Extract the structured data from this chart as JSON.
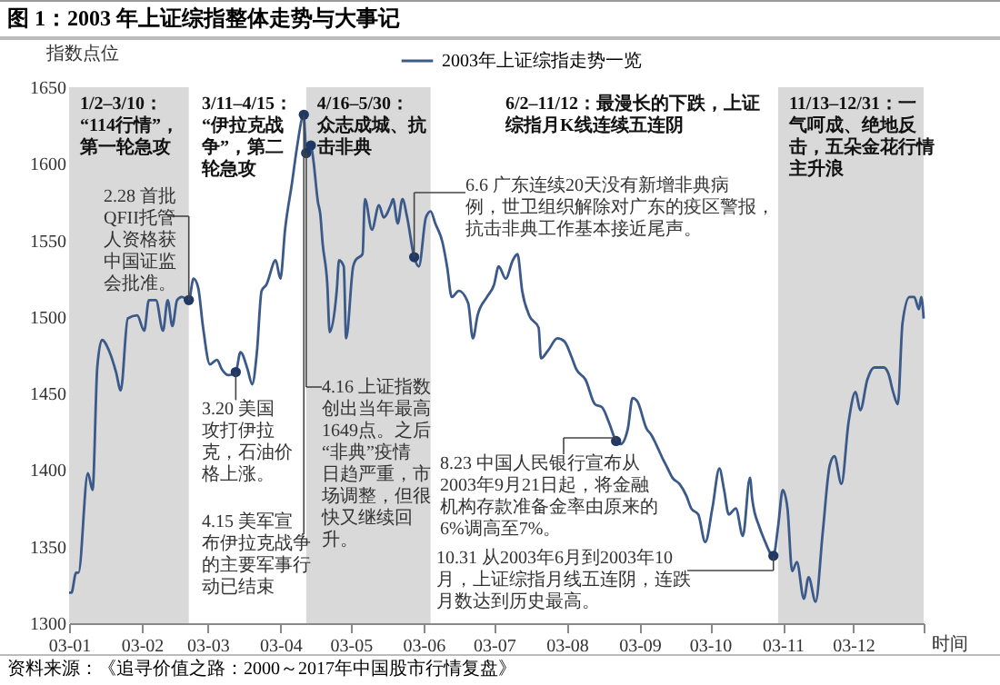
{
  "chart_data": {
    "type": "line",
    "title": "图 1：2003 年上证综指整体走势与大事记",
    "xlabel": "时间",
    "ylabel": "指数点位",
    "legend": "top",
    "xlim": [
      "2003-01-01",
      "2003-12-31"
    ],
    "ylim": [
      1300,
      1650
    ],
    "xticks": [
      {
        "value": "2003-01-01",
        "label": "03-01"
      },
      {
        "value": "2003-02-01",
        "label": "03-02"
      },
      {
        "value": "2003-03-01",
        "label": "03-03"
      },
      {
        "value": "2003-04-01",
        "label": "03-04"
      },
      {
        "value": "2003-05-01",
        "label": "03-05"
      },
      {
        "value": "2003-06-01",
        "label": "03-06"
      },
      {
        "value": "2003-07-01",
        "label": "03-07"
      },
      {
        "value": "2003-08-01",
        "label": "03-08"
      },
      {
        "value": "2003-09-01",
        "label": "03-09"
      },
      {
        "value": "2003-10-01",
        "label": "03-10"
      },
      {
        "value": "2003-11-01",
        "label": "03-11"
      },
      {
        "value": "2003-12-01",
        "label": "03-12"
      },
      {
        "value": "2003-12-31",
        "label": null
      }
    ],
    "yticks": [
      1300,
      1350,
      1400,
      1450,
      1500,
      1550,
      1600,
      1650
    ],
    "series": [
      {
        "name": "2003年上证综指走势一览",
        "color": "#3b5a8a",
        "x": [
          "2003-01-01",
          "2003-01-02",
          "2003-01-04",
          "2003-01-05",
          "2003-01-09",
          "2003-01-11",
          "2003-01-13",
          "2003-01-15",
          "2003-01-18",
          "2003-01-21",
          "2003-01-23",
          "2003-01-26",
          "2003-01-30",
          "2003-02-02",
          "2003-02-04",
          "2003-02-07",
          "2003-02-10",
          "2003-02-12",
          "2003-02-14",
          "2003-02-16",
          "2003-02-18",
          "2003-02-21",
          "2003-02-23",
          "2003-02-25",
          "2003-02-27",
          "2003-03-02",
          "2003-03-05",
          "2003-03-07",
          "2003-03-10",
          "2003-03-13",
          "2003-03-15",
          "2003-03-18",
          "2003-03-20",
          "2003-03-22",
          "2003-03-24",
          "2003-03-26",
          "2003-03-30",
          "2003-04-01",
          "2003-04-03",
          "2003-04-06",
          "2003-04-08",
          "2003-04-11",
          "2003-04-12",
          "2003-04-14",
          "2003-04-15",
          "2003-04-17",
          "2003-04-18",
          "2003-04-19",
          "2003-04-21",
          "2003-04-22",
          "2003-04-25",
          "2003-04-26",
          "2003-04-28",
          "2003-04-29",
          "2003-05-02",
          "2003-05-03",
          "2003-05-06",
          "2003-05-07",
          "2003-05-10",
          "2003-05-13",
          "2003-05-15",
          "2003-05-18",
          "2003-05-19",
          "2003-05-21",
          "2003-05-23",
          "2003-05-25",
          "2003-05-28",
          "2003-05-30",
          "2003-06-02",
          "2003-06-04",
          "2003-06-06",
          "2003-06-09",
          "2003-06-11",
          "2003-06-13",
          "2003-06-16",
          "2003-06-20",
          "2003-06-22",
          "2003-06-24",
          "2003-06-28",
          "2003-07-01",
          "2003-07-03",
          "2003-07-06",
          "2003-07-09",
          "2003-07-11",
          "2003-07-13",
          "2003-07-16",
          "2003-07-20",
          "2003-07-21",
          "2003-07-24",
          "2003-07-28",
          "2003-07-31",
          "2003-08-03",
          "2003-08-05",
          "2003-08-09",
          "2003-08-13",
          "2003-08-16",
          "2003-08-19",
          "2003-08-22",
          "2003-08-24",
          "2003-08-27",
          "2003-08-29",
          "2003-08-31",
          "2003-09-04",
          "2003-09-06",
          "2003-09-08",
          "2003-09-11",
          "2003-09-13",
          "2003-09-15",
          "2003-09-18",
          "2003-09-21",
          "2003-09-23",
          "2003-09-26",
          "2003-09-29",
          "2003-10-02",
          "2003-10-05",
          "2003-10-07",
          "2003-10-09",
          "2003-10-12",
          "2003-10-15",
          "2003-10-18",
          "2003-10-19",
          "2003-10-22",
          "2003-10-24",
          "2003-10-28",
          "2003-10-30",
          "2003-11-01",
          "2003-11-03",
          "2003-11-05",
          "2003-11-07",
          "2003-11-10",
          "2003-11-12",
          "2003-11-15",
          "2003-11-18",
          "2003-11-21",
          "2003-11-23",
          "2003-11-26",
          "2003-11-29",
          "2003-12-02",
          "2003-12-04",
          "2003-12-07",
          "2003-12-10",
          "2003-12-14",
          "2003-12-16",
          "2003-12-18",
          "2003-12-20",
          "2003-12-22",
          "2003-12-25",
          "2003-12-27",
          "2003-12-29",
          "2003-12-30",
          "2003-12-31"
        ],
        "values": [
          1320,
          1320,
          1333,
          1333,
          1398,
          1387,
          1467,
          1485,
          1478,
          1464,
          1452,
          1499,
          1501,
          1491,
          1511,
          1511,
          1491,
          1511,
          1494,
          1511,
          1513,
          1511,
          1525,
          1519,
          1494,
          1469,
          1472,
          1466,
          1462,
          1464,
          1477,
          1466,
          1456,
          1477,
          1517,
          1521,
          1537,
          1525,
          1557,
          1588,
          1610,
          1632,
          1607,
          1612,
          1603,
          1575,
          1567,
          1548,
          1521,
          1490,
          1517,
          1537,
          1533,
          1486,
          1533,
          1537,
          1541,
          1577,
          1557,
          1573,
          1565,
          1573,
          1577,
          1561,
          1577,
          1565,
          1539,
          1533,
          1565,
          1569,
          1561,
          1549,
          1533,
          1513,
          1517,
          1509,
          1486,
          1501,
          1513,
          1521,
          1533,
          1525,
          1537,
          1541,
          1517,
          1501,
          1493,
          1473,
          1478,
          1486,
          1484,
          1474,
          1466,
          1459,
          1443,
          1441,
          1431,
          1419,
          1417,
          1427,
          1447,
          1445,
          1427,
          1423,
          1417,
          1407,
          1401,
          1395,
          1391,
          1383,
          1375,
          1371,
          1353,
          1375,
          1401,
          1387,
          1371,
          1375,
          1357,
          1395,
          1381,
          1363,
          1355,
          1344,
          1363,
          1387,
          1375,
          1334,
          1340,
          1316,
          1330,
          1314,
          1359,
          1403,
          1409,
          1391,
          1431,
          1451,
          1439,
          1459,
          1467,
          1467,
          1463,
          1451,
          1443,
          1496,
          1513,
          1513,
          1505,
          1513,
          1499
        ]
      },
      {
        "type": "scatter",
        "color": "#1f3864",
        "marker": "circle",
        "x": [
          "2003-02-21",
          "2003-03-13",
          "2003-04-11",
          "2003-04-12",
          "2003-04-14",
          "2003-05-28",
          "2003-08-22",
          "2003-10-28"
        ],
        "values": [
          1511,
          1464,
          1632,
          1607,
          1612,
          1539,
          1419,
          1344
        ]
      }
    ],
    "bands": [
      {
        "axis": "x",
        "from": "2003-01-01",
        "to": "2003-02-21",
        "color": "#d9d9d9",
        "label": "1/2–3/10：“114行情”，第一轮急攻"
      },
      {
        "axis": "x",
        "from": "2003-04-12",
        "to": "2003-06-04",
        "color": "#d9d9d9",
        "label": "4/16–5/30：众志成城、抗击非典"
      },
      {
        "axis": "x",
        "from": "2003-10-30",
        "to": "2003-12-31",
        "color": "#d9d9d9",
        "label": "11/13–12/31：一气呵成、绝地反击，五朵金花行情主升浪"
      }
    ],
    "annotations": [
      "3/11–4/15：“伊拉克战争”，第二轮急攻",
      "6/2–11/12：最漫长的下跌，上证综指月K线连续五连阴",
      {
        "text": "2.28 首批QFII托管人资格获中国证监会批准。",
        "x": "2003-02-21",
        "y": 1511
      },
      {
        "text": "3.20 美国攻打伊拉克，石油价格上涨。",
        "x": "2003-03-13",
        "y": 1464
      },
      {
        "text": "4.15 美军宣布伊拉克战争的主要军事行动已结束",
        "x": "2003-04-11",
        "y": 1632
      },
      {
        "text": "4.16 上证指数创出当年最高1649点。之后“非典”疫情日趋严重，市场调整，但很快又继续回升。",
        "x": "2003-04-12",
        "y": 1607
      },
      {
        "text": "6.6 广东连续20天没有新增非典病例，世卫组织解除对广东的疫区警报，抗击非典工作基本接近尾声。",
        "x": "2003-05-28",
        "y": 1539
      },
      {
        "text": "8.23 中国人民银行宣布从2003年9月21日起，将金融机构存款准备金率由原来的6%调高至7%。",
        "x": "2003-08-22",
        "y": 1419
      },
      {
        "text": "10.31 从2003年6月到2003年10月，上证综指月线五连阴，连跌月数达到历史最高。",
        "x": "2003-10-28",
        "y": 1344
      },
      "资料来源：《追寻价值之路：2000～2017年中国股市行情复盘》"
    ]
  }
}
